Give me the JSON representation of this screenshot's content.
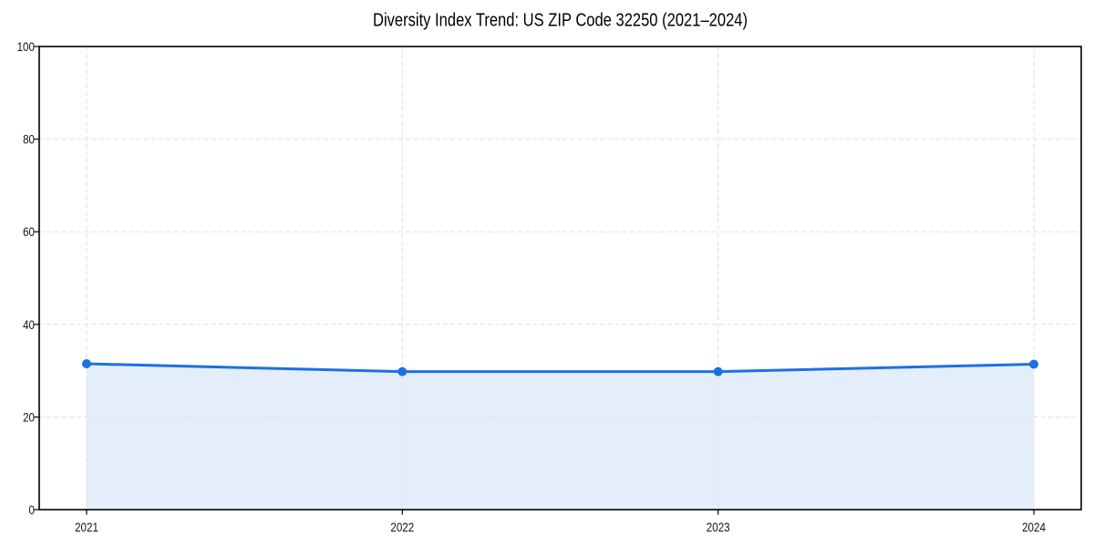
{
  "chart_data": {
    "type": "area",
    "title": "Diversity Index Trend: US ZIP Code 32250 (2021–2024)",
    "series_name": "Diversity Index",
    "x": [
      "2021",
      "2022",
      "2023",
      "2024"
    ],
    "values": [
      31.5,
      29.8,
      29.8,
      31.4
    ],
    "xlabel": "",
    "ylabel": "",
    "ylim": [
      0,
      100
    ],
    "yticks": [
      "0",
      "20",
      "40",
      "60",
      "80",
      "100"
    ],
    "grid": "dashed",
    "legend": "none",
    "line_color": "#1d70e2",
    "fill_color": "#1d70e2",
    "fill_opacity": 0.12,
    "grid_color": "#e3e3e3",
    "spine_color": "#000000",
    "marker": "circle"
  }
}
